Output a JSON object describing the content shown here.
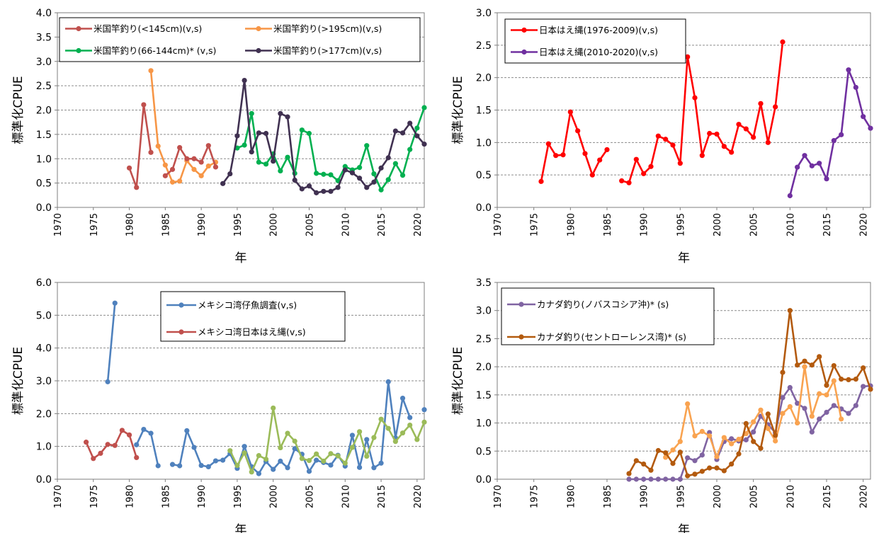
{
  "chart_data": [
    {
      "type": "line",
      "title": "",
      "xlabel": "年",
      "ylabel": "標準化CPUE",
      "xlim": [
        1970,
        2021
      ],
      "ylim": [
        0,
        4.0
      ],
      "xticks": [
        1970,
        1975,
        1980,
        1985,
        1990,
        1995,
        2000,
        2005,
        2010,
        2015,
        2020
      ],
      "yticks": [
        "0.0",
        "0.5",
        "1.0",
        "1.5",
        "2.0",
        "2.5",
        "3.0",
        "3.5",
        "4.0"
      ],
      "grid": "horizontal",
      "legend": "top, boxed, 2 columns",
      "series": [
        {
          "name": "米国竿釣り(<145cm)(v,s)",
          "color": "#c0504d",
          "x": [
            1980,
            1981,
            1982,
            1983
          ],
          "y": [
            0.81,
            0.41,
            2.11,
            1.13
          ]
        },
        {
          "name": "米国竿釣り(>195cm)(v,s)",
          "color": "#f79646",
          "x": [
            1983,
            1984,
            1985,
            1986,
            1987,
            1988,
            1989,
            1990,
            1991,
            1992
          ],
          "y": [
            2.81,
            1.26,
            0.87,
            0.52,
            0.54,
            0.96,
            0.78,
            0.65,
            0.85,
            0.93
          ]
        },
        {
          "name": "米国竿釣り(<145cm)(v,s)",
          "color": "#c0504d",
          "x": [
            1985,
            1986,
            1987,
            1988,
            1989,
            1990,
            1991,
            1992
          ],
          "y": [
            0.65,
            0.78,
            1.23,
            1.0,
            1.0,
            0.93,
            1.27,
            0.83
          ]
        },
        {
          "name": "米国竿釣り(66-144cm)* (v,s)",
          "color": "#00b050",
          "x": [
            1995,
            1996,
            1997,
            1998,
            1999,
            2000,
            2001,
            2002,
            2003,
            2004,
            2005,
            2006,
            2007,
            2008,
            2009,
            2010,
            2011,
            2012,
            2013,
            2014,
            2015,
            2016,
            2017,
            2018,
            2019,
            2020,
            2021
          ],
          "y": [
            1.22,
            1.28,
            1.93,
            0.93,
            0.89,
            1.1,
            0.75,
            1.03,
            0.7,
            1.59,
            1.52,
            0.7,
            0.68,
            0.67,
            0.55,
            0.84,
            0.77,
            0.82,
            1.27,
            0.69,
            0.36,
            0.57,
            0.9,
            0.66,
            1.19,
            1.63,
            2.05
          ]
        },
        {
          "name": "米国竿釣り(>177cm)(v,s)",
          "color": "#403151",
          "x": [
            1993,
            1994,
            1995,
            1996,
            1997,
            1998,
            1999,
            2000,
            2001,
            2002,
            2003,
            2004,
            2005,
            2006,
            2007,
            2008,
            2009,
            2010,
            2011,
            2012,
            2013,
            2014,
            2015,
            2016,
            2017,
            2018,
            2019,
            2020,
            2021
          ],
          "y": [
            0.49,
            0.69,
            1.47,
            2.61,
            1.14,
            1.53,
            1.52,
            0.95,
            1.93,
            1.86,
            0.56,
            0.38,
            0.44,
            0.3,
            0.33,
            0.33,
            0.41,
            0.77,
            0.71,
            0.6,
            0.41,
            0.52,
            0.81,
            1.02,
            1.57,
            1.53,
            1.73,
            1.47,
            1.3
          ]
        }
      ]
    },
    {
      "type": "line",
      "title": "",
      "xlabel": "年",
      "ylabel": "標準化CPUE",
      "xlim": [
        1970,
        2021
      ],
      "ylim": [
        0,
        3.0
      ],
      "xticks": [
        1970,
        1975,
        1980,
        1985,
        1990,
        1995,
        2000,
        2005,
        2010,
        2015,
        2020
      ],
      "yticks": [
        "0.0",
        "0.5",
        "1.0",
        "1.5",
        "2.0",
        "2.5",
        "3.0"
      ],
      "grid": "horizontal",
      "legend": "top-left, boxed",
      "series": [
        {
          "name": "日本はえ縄(1976-2009)(v,s)",
          "color": "#ff0000",
          "x": [
            1976,
            1977,
            1978,
            1979,
            1980,
            1981,
            1982,
            1983,
            1984,
            1985
          ],
          "y": [
            0.4,
            0.98,
            0.8,
            0.81,
            1.47,
            1.18,
            0.83,
            0.5,
            0.73,
            0.89
          ]
        },
        {
          "name": "日本はえ縄(1976-2009)(v,s)",
          "color": "#ff0000",
          "x": [
            1987,
            1988,
            1989,
            1990,
            1991,
            1992,
            1993,
            1994,
            1995,
            1996,
            1997,
            1998,
            1999,
            2000,
            2001,
            2002,
            2003,
            2004,
            2005,
            2006,
            2007,
            2008,
            2009
          ],
          "y": [
            0.41,
            0.38,
            0.74,
            0.52,
            0.63,
            1.1,
            1.05,
            0.96,
            0.68,
            2.32,
            1.69,
            0.8,
            1.14,
            1.13,
            0.94,
            0.85,
            1.28,
            1.21,
            1.08,
            1.6,
            1.0,
            1.55,
            2.55
          ]
        },
        {
          "name": "日本はえ縄(2010-2020)(v,s)",
          "color": "#7030a0",
          "x": [
            2010,
            2011,
            2012,
            2013,
            2014,
            2015,
            2016,
            2017,
            2018,
            2019,
            2020,
            2021
          ],
          "y": [
            0.18,
            0.62,
            0.8,
            0.64,
            0.68,
            0.44,
            1.03,
            1.12,
            2.12,
            1.85,
            1.4,
            1.22
          ]
        }
      ]
    },
    {
      "type": "line",
      "title": "",
      "xlabel": "年",
      "ylabel": "標準化CPUE",
      "xlim": [
        1970,
        2021
      ],
      "ylim": [
        0,
        6.0
      ],
      "xticks": [
        1970,
        1975,
        1980,
        1985,
        1990,
        1995,
        2000,
        2005,
        2010,
        2015,
        2020
      ],
      "yticks": [
        "0.0",
        "1.0",
        "2.0",
        "3.0",
        "4.0",
        "5.0",
        "6.0"
      ],
      "grid": "horizontal",
      "legend": "top-center, boxed",
      "series": [
        {
          "name": "メキシコ湾仔魚調査(v,s)",
          "color": "#4f81bd",
          "x": [
            1977,
            1978
          ],
          "y": [
            2.97,
            5.37
          ]
        },
        {
          "name": "メキシコ湾仔魚調査(v,s)",
          "color": "#4f81bd",
          "x": [
            1981,
            1982,
            1983,
            1984
          ],
          "y": [
            1.05,
            1.52,
            1.4,
            0.41
          ]
        },
        {
          "name": "メキシコ湾仔魚調査(v,s)",
          "color": "#4f81bd",
          "x": [
            1986,
            1987,
            1988,
            1989,
            1990,
            1991,
            1992,
            1993,
            1994,
            1995,
            1996,
            1997,
            1998,
            1999,
            2000,
            2001,
            2002,
            2003,
            2004,
            2005,
            2006,
            2007,
            2008,
            2009,
            2010,
            2011,
            2012,
            2013,
            2014,
            2015,
            2016,
            2017,
            2018,
            2019
          ],
          "y": [
            0.45,
            0.41,
            1.48,
            0.97,
            0.42,
            0.38,
            0.56,
            0.58,
            0.78,
            0.33,
            1.0,
            0.38,
            0.17,
            0.54,
            0.3,
            0.55,
            0.35,
            0.93,
            0.76,
            0.24,
            0.58,
            0.51,
            0.43,
            0.73,
            0.4,
            1.34,
            0.36,
            1.21,
            0.35,
            0.49,
            2.97,
            1.26,
            2.47,
            1.88
          ]
        },
        {
          "name": "メキシコ湾仔魚調査(v,s)",
          "color": "#4f81bd",
          "x": [
            2021
          ],
          "y": [
            2.12
          ]
        },
        {
          "name": "メキシコ湾日本はえ縄(v,s)",
          "color": "#c0504d",
          "x": [
            1974,
            1975,
            1976,
            1977,
            1978,
            1979,
            1980,
            1981
          ],
          "y": [
            1.13,
            0.63,
            0.79,
            1.06,
            1.03,
            1.49,
            1.35,
            0.66
          ]
        },
        {
          "name": "",
          "color": "#9bbb59",
          "x": [
            1994,
            1995,
            1996,
            1997,
            1998,
            1999,
            2000,
            2001,
            2002,
            2003,
            2004,
            2005,
            2006,
            2007,
            2008,
            2009,
            2010,
            2011,
            2012,
            2013,
            2014,
            2015,
            2016,
            2017,
            2018,
            2019,
            2020,
            2021
          ],
          "y": [
            0.87,
            0.42,
            0.8,
            0.22,
            0.72,
            0.61,
            2.17,
            0.96,
            1.4,
            1.16,
            0.63,
            0.57,
            0.77,
            0.55,
            0.78,
            0.71,
            0.49,
            0.97,
            1.45,
            0.7,
            1.27,
            1.83,
            1.55,
            1.15,
            1.41,
            1.65,
            1.21,
            1.74
          ]
        }
      ]
    },
    {
      "type": "line",
      "title": "",
      "xlabel": "年",
      "ylabel": "標準化CPUE",
      "xlim": [
        1970,
        2021
      ],
      "ylim": [
        0,
        3.5
      ],
      "xticks": [
        1970,
        1975,
        1980,
        1985,
        1990,
        1995,
        2000,
        2005,
        2010,
        2015,
        2020
      ],
      "yticks": [
        "0.0",
        "0.5",
        "1.0",
        "1.5",
        "2.0",
        "2.5",
        "3.0",
        "3.5"
      ],
      "grid": "horizontal",
      "legend": "top-left, boxed",
      "series": [
        {
          "name": "カナダ釣り(ノバスコシア沖)* (s)",
          "color": "#8064a2",
          "x": [
            1988,
            1989,
            1990,
            1991,
            1992,
            1993,
            1994,
            1995,
            1996,
            1997,
            1998,
            1999,
            2000,
            2001,
            2002,
            2003,
            2004,
            2005,
            2006,
            2007,
            2008,
            2009,
            2010,
            2011,
            2012,
            2013,
            2014,
            2015,
            2016,
            2017,
            2018,
            2019,
            2020,
            2021
          ],
          "y": [
            0,
            0,
            0,
            0,
            0,
            0,
            0,
            0,
            0.38,
            0.33,
            0.43,
            0.83,
            0.35,
            0.67,
            0.72,
            0.68,
            0.7,
            0.84,
            1.12,
            0.97,
            0.83,
            1.45,
            1.63,
            1.35,
            1.26,
            0.84,
            1.07,
            1.19,
            1.31,
            1.25,
            1.17,
            1.31,
            1.65,
            1.66
          ]
        },
        {
          "name": "",
          "color": "#f9a350",
          "x": [
            1993,
            1994,
            1995,
            1996,
            1997,
            1998,
            1999,
            2000,
            2001,
            2002,
            2003,
            2004,
            2005,
            2006,
            2007,
            2008,
            2009,
            2010,
            2011,
            2012,
            2013,
            2014,
            2015,
            2016,
            2017
          ],
          "y": [
            0.39,
            0.52,
            0.67,
            1.34,
            0.77,
            0.85,
            0.77,
            0.4,
            0.74,
            0.63,
            0.71,
            0.81,
            1.02,
            1.23,
            0.9,
            0.68,
            1.17,
            1.29,
            1.0,
            2.0,
            1.12,
            1.52,
            1.5,
            1.75,
            1.07
          ]
        },
        {
          "name": "カナダ釣り(セントローレンス湾)* (s)",
          "color": "#b35a0e",
          "x": [
            1988,
            1989,
            1990,
            1991,
            1992,
            1993,
            1994,
            1995,
            1996,
            1997,
            1998,
            1999,
            2000,
            2001,
            2002,
            2003,
            2004,
            2005,
            2006,
            2007,
            2008,
            2009,
            2010,
            2011,
            2012,
            2013,
            2014,
            2015,
            2016,
            2017,
            2018,
            2019,
            2020,
            2021
          ],
          "y": [
            0.1,
            0.33,
            0.27,
            0.16,
            0.51,
            0.47,
            0.28,
            0.48,
            0.06,
            0.09,
            0.14,
            0.2,
            0.2,
            0.15,
            0.27,
            0.45,
            0.99,
            0.67,
            0.55,
            1.16,
            0.78,
            1.9,
            3.0,
            2.03,
            2.1,
            2.03,
            2.18,
            1.67,
            2.02,
            1.78,
            1.77,
            1.78,
            1.98,
            1.6
          ]
        }
      ]
    }
  ]
}
